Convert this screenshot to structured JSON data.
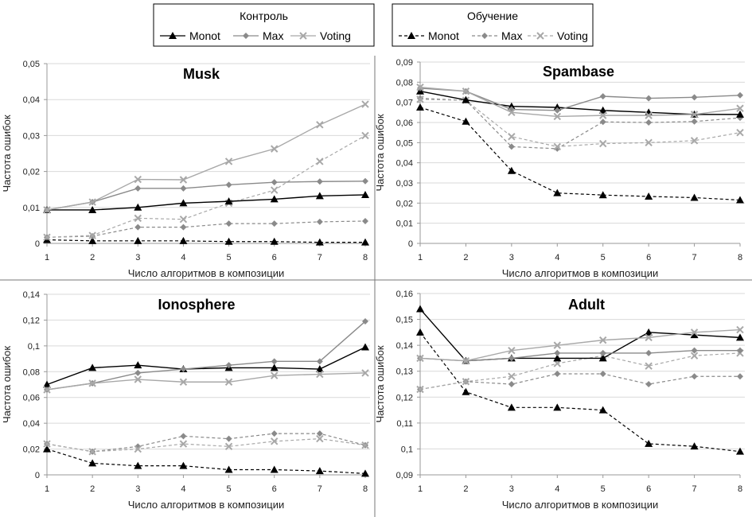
{
  "legends": [
    {
      "title": "Контроль",
      "group": "control",
      "items": [
        "Monot",
        "Max",
        "Voting"
      ]
    },
    {
      "title": "Обучение",
      "group": "train",
      "items": [
        "Monot",
        "Max",
        "Voting"
      ]
    }
  ],
  "series_styles": {
    "Monot": {
      "color": "#000000",
      "marker": "triangle"
    },
    "Max": {
      "color": "#8a8a8a",
      "marker": "diamond"
    },
    "Voting": {
      "color": "#a8a8a8",
      "marker": "x"
    },
    "control_line": "solid",
    "train_line": "dashed"
  },
  "chart_data": [
    {
      "type": "line",
      "title": "Musk",
      "xlabel": "Число алгоритмов в композиции",
      "ylabel": "Частота ошибок",
      "x": [
        1,
        2,
        3,
        4,
        5,
        6,
        7,
        8
      ],
      "ylim": [
        0,
        0.05
      ],
      "yticks": [
        0,
        0.01,
        0.02,
        0.03,
        0.04,
        0.05
      ],
      "ytick_labels": [
        "0",
        "0,01",
        "0,02",
        "0,03",
        "0,04",
        "0,05"
      ],
      "grid": true,
      "series": [
        {
          "name": "Monot",
          "group": "control",
          "values": [
            0.0093,
            0.0093,
            0.01,
            0.0112,
            0.0117,
            0.0123,
            0.0132,
            0.0135
          ]
        },
        {
          "name": "Max",
          "group": "control",
          "values": [
            0.0093,
            0.0115,
            0.0153,
            0.0153,
            0.0163,
            0.017,
            0.0172,
            0.0173
          ]
        },
        {
          "name": "Voting",
          "group": "control",
          "values": [
            0.0093,
            0.0115,
            0.0178,
            0.0177,
            0.0228,
            0.0263,
            0.033,
            0.0387
          ]
        },
        {
          "name": "Monot",
          "group": "train",
          "values": [
            0.001,
            0.0007,
            0.0007,
            0.0007,
            0.0005,
            0.0005,
            0.0003,
            0.0003
          ]
        },
        {
          "name": "Max",
          "group": "train",
          "values": [
            0.0017,
            0.002,
            0.0045,
            0.0045,
            0.0055,
            0.0055,
            0.006,
            0.0062
          ]
        },
        {
          "name": "Voting",
          "group": "train",
          "values": [
            0.0017,
            0.0022,
            0.007,
            0.0067,
            0.0112,
            0.0148,
            0.0228,
            0.03
          ]
        }
      ]
    },
    {
      "type": "line",
      "title": "Spambase",
      "xlabel": "Число алгоритмов в композиции",
      "ylabel": "Частота ошибок",
      "x": [
        1,
        2,
        3,
        4,
        5,
        6,
        7,
        8
      ],
      "ylim": [
        0,
        0.09
      ],
      "yticks": [
        0,
        0.01,
        0.02,
        0.03,
        0.04,
        0.05,
        0.06,
        0.07,
        0.08,
        0.09
      ],
      "ytick_labels": [
        "0",
        "0,01",
        "0,02",
        "0,03",
        "0,04",
        "0,05",
        "0,06",
        "0,07",
        "0,08",
        "0,09"
      ],
      "grid": true,
      "series": [
        {
          "name": "Monot",
          "group": "control",
          "values": [
            0.0755,
            0.0712,
            0.068,
            0.0675,
            0.066,
            0.065,
            0.064,
            0.064
          ]
        },
        {
          "name": "Max",
          "group": "control",
          "values": [
            0.077,
            0.0755,
            0.0665,
            0.066,
            0.073,
            0.072,
            0.0725,
            0.0735
          ]
        },
        {
          "name": "Voting",
          "group": "control",
          "values": [
            0.0775,
            0.0755,
            0.065,
            0.063,
            0.0635,
            0.0635,
            0.064,
            0.067
          ]
        },
        {
          "name": "Monot",
          "group": "train",
          "values": [
            0.0675,
            0.0605,
            0.036,
            0.025,
            0.024,
            0.0233,
            0.0227,
            0.0215
          ]
        },
        {
          "name": "Max",
          "group": "train",
          "values": [
            0.072,
            0.071,
            0.048,
            0.047,
            0.0603,
            0.06,
            0.0605,
            0.0623
          ]
        },
        {
          "name": "Voting",
          "group": "train",
          "values": [
            0.0715,
            0.071,
            0.053,
            0.048,
            0.0495,
            0.05,
            0.051,
            0.055
          ]
        }
      ]
    },
    {
      "type": "line",
      "title": "Ionosphere",
      "xlabel": "Число алгоритмов в композиции",
      "ylabel": "Частота ошибок",
      "x": [
        1,
        2,
        3,
        4,
        5,
        6,
        7,
        8
      ],
      "ylim": [
        0,
        0.14
      ],
      "yticks": [
        0,
        0.02,
        0.04,
        0.06,
        0.08,
        0.1,
        0.12,
        0.14
      ],
      "ytick_labels": [
        "0",
        "0,02",
        "0,04",
        "0,06",
        "0,08",
        "0,1",
        "0,12",
        "0,14"
      ],
      "grid": true,
      "series": [
        {
          "name": "Monot",
          "group": "control",
          "values": [
            0.07,
            0.083,
            0.085,
            0.082,
            0.083,
            0.083,
            0.082,
            0.099
          ]
        },
        {
          "name": "Max",
          "group": "control",
          "values": [
            0.066,
            0.071,
            0.079,
            0.082,
            0.085,
            0.088,
            0.088,
            0.119
          ]
        },
        {
          "name": "Voting",
          "group": "control",
          "values": [
            0.066,
            0.071,
            0.074,
            0.072,
            0.072,
            0.077,
            0.078,
            0.079
          ]
        },
        {
          "name": "Monot",
          "group": "train",
          "values": [
            0.02,
            0.009,
            0.007,
            0.007,
            0.004,
            0.004,
            0.003,
            0.001
          ]
        },
        {
          "name": "Max",
          "group": "train",
          "values": [
            0.024,
            0.018,
            0.022,
            0.03,
            0.028,
            0.032,
            0.032,
            0.023
          ]
        },
        {
          "name": "Voting",
          "group": "train",
          "values": [
            0.024,
            0.018,
            0.02,
            0.024,
            0.022,
            0.026,
            0.028,
            0.023
          ]
        }
      ]
    },
    {
      "type": "line",
      "title": "Adult",
      "xlabel": "Число алгоритмов в композиции",
      "ylabel": "Частота ошибок",
      "x": [
        1,
        2,
        3,
        4,
        5,
        6,
        7,
        8
      ],
      "ylim": [
        0.09,
        0.16
      ],
      "yticks": [
        0.09,
        0.1,
        0.11,
        0.12,
        0.13,
        0.14,
        0.15,
        0.16
      ],
      "ytick_labels": [
        "0,09",
        "0,1",
        "0,11",
        "0,12",
        "0,13",
        "0,14",
        "0,15",
        "0,16"
      ],
      "grid": true,
      "series": [
        {
          "name": "Monot",
          "group": "control",
          "values": [
            0.154,
            0.134,
            0.135,
            0.135,
            0.135,
            0.145,
            0.144,
            0.143
          ]
        },
        {
          "name": "Max",
          "group": "control",
          "values": [
            0.135,
            0.134,
            0.135,
            0.137,
            0.137,
            0.137,
            0.138,
            0.138
          ]
        },
        {
          "name": "Voting",
          "group": "control",
          "values": [
            0.135,
            0.134,
            0.138,
            0.14,
            0.142,
            0.143,
            0.145,
            0.146
          ]
        },
        {
          "name": "Monot",
          "group": "train",
          "values": [
            0.145,
            0.122,
            0.116,
            0.116,
            0.115,
            0.102,
            0.101,
            0.099
          ]
        },
        {
          "name": "Max",
          "group": "train",
          "values": [
            0.123,
            0.126,
            0.125,
            0.129,
            0.129,
            0.125,
            0.128,
            0.128
          ]
        },
        {
          "name": "Voting",
          "group": "train",
          "values": [
            0.123,
            0.126,
            0.128,
            0.133,
            0.136,
            0.132,
            0.136,
            0.137
          ]
        }
      ]
    }
  ]
}
